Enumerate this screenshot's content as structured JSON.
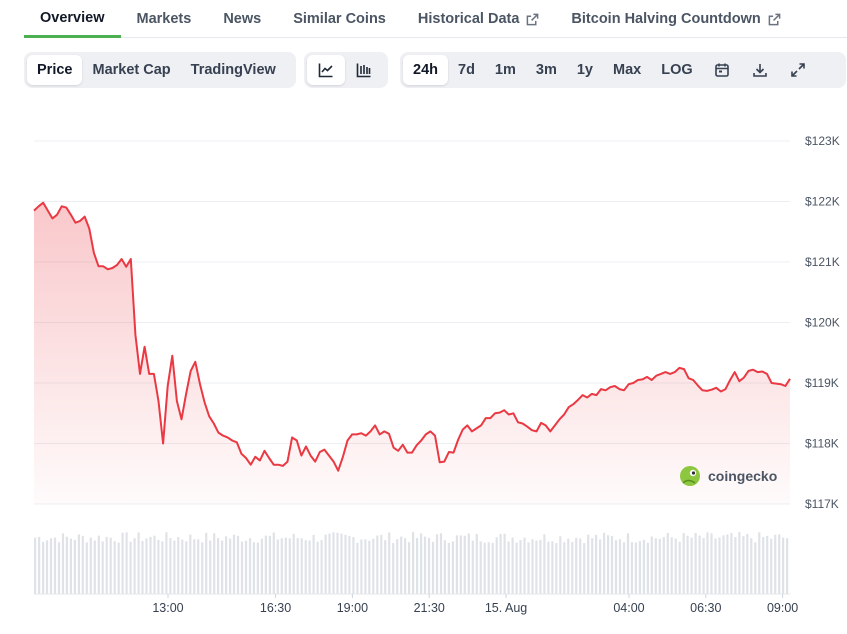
{
  "tabs": [
    {
      "label": "Overview",
      "active": true,
      "external": false
    },
    {
      "label": "Markets",
      "active": false,
      "external": false
    },
    {
      "label": "News",
      "active": false,
      "external": false
    },
    {
      "label": "Similar Coins",
      "active": false,
      "external": false
    },
    {
      "label": "Historical Data",
      "active": false,
      "external": true
    },
    {
      "label": "Bitcoin Halving Countdown",
      "active": false,
      "external": true
    }
  ],
  "chart_modes": [
    {
      "label": "Price",
      "active": true
    },
    {
      "label": "Market Cap",
      "active": false
    },
    {
      "label": "TradingView",
      "active": false
    }
  ],
  "chart_styles": [
    {
      "icon": "line-chart-icon",
      "active": true
    },
    {
      "icon": "candlestick-chart-icon",
      "active": false
    }
  ],
  "ranges": [
    {
      "label": "24h",
      "active": true
    },
    {
      "label": "7d",
      "active": false
    },
    {
      "label": "1m",
      "active": false
    },
    {
      "label": "3m",
      "active": false
    },
    {
      "label": "1y",
      "active": false
    },
    {
      "label": "Max",
      "active": false
    },
    {
      "label": "LOG",
      "active": false
    }
  ],
  "tool_icons": [
    "calendar-icon",
    "download-icon",
    "fullscreen-icon"
  ],
  "watermark": "coingecko",
  "colors": {
    "line": "#ea3943",
    "active_tab": "#4caf50",
    "volume": "#dfe3e8"
  },
  "chart_data": {
    "type": "area",
    "y_ticks": [
      "$123K",
      "$122K",
      "$121K",
      "$120K",
      "$119K",
      "$118K",
      "$117K"
    ],
    "ylim": [
      117000,
      123000
    ],
    "x_ticks": [
      {
        "label": "13:00",
        "h": 2.06
      },
      {
        "label": "16:30",
        "h": 5.56
      },
      {
        "label": "19:00",
        "h": 8.06
      },
      {
        "label": "21:30",
        "h": 10.56
      },
      {
        "label": "15. Aug",
        "h": 13.06
      },
      {
        "label": "04:00",
        "h": 17.06
      },
      {
        "label": "06:30",
        "h": 19.56
      },
      {
        "label": "09:00",
        "h": 22.06
      }
    ],
    "x_range_hours": [
      -2.3,
      22.3
    ],
    "grid": true,
    "series": [
      {
        "values": [
          121850,
          121920,
          121980,
          121850,
          121720,
          121780,
          121920,
          121900,
          121780,
          121650,
          121680,
          121750,
          121550,
          121150,
          120930,
          120930,
          120880,
          120900,
          120950,
          121050,
          120920,
          121050,
          119800,
          119150,
          119600,
          119150,
          119150,
          118700,
          118000,
          118950,
          119450,
          118700,
          118400,
          118820,
          119200,
          119350,
          118980,
          118680,
          118450,
          118330,
          118180,
          118130,
          118100,
          118050,
          118020,
          117830,
          117760,
          117650,
          117780,
          117720,
          117880,
          117760,
          117650,
          117650,
          117630,
          117700,
          118100,
          118050,
          117800,
          117950,
          117800,
          117700,
          117860,
          117900,
          117800,
          117700,
          117550,
          117780,
          118050,
          118150,
          118150,
          118170,
          118130,
          118200,
          118300,
          118150,
          118200,
          118160,
          117930,
          117880,
          117980,
          117850,
          117850,
          117970,
          118050,
          118150,
          118200,
          118130,
          117690,
          117700,
          117860,
          117850,
          118060,
          118230,
          118300,
          118200,
          118250,
          118300,
          118420,
          118420,
          118500,
          118510,
          118550,
          118480,
          118500,
          118350,
          118330,
          118280,
          118220,
          118200,
          118340,
          118300,
          118200,
          118300,
          118400,
          118480,
          118600,
          118650,
          118720,
          118800,
          118760,
          118820,
          118800,
          118900,
          118880,
          118930,
          118950,
          118900,
          118880,
          118980,
          119000,
          119050,
          119060,
          119100,
          119050,
          119120,
          119150,
          119180,
          119150,
          119180,
          119250,
          119230,
          119080,
          119050,
          118960,
          118880,
          118870,
          118890,
          118920,
          118860,
          118900,
          119050,
          119180,
          119030,
          119090,
          119200,
          119220,
          119180,
          119190,
          119150,
          119000,
          118990,
          118980,
          118950,
          119070
        ]
      }
    ],
    "volume_note": "relative volume bars shown at bottom"
  }
}
